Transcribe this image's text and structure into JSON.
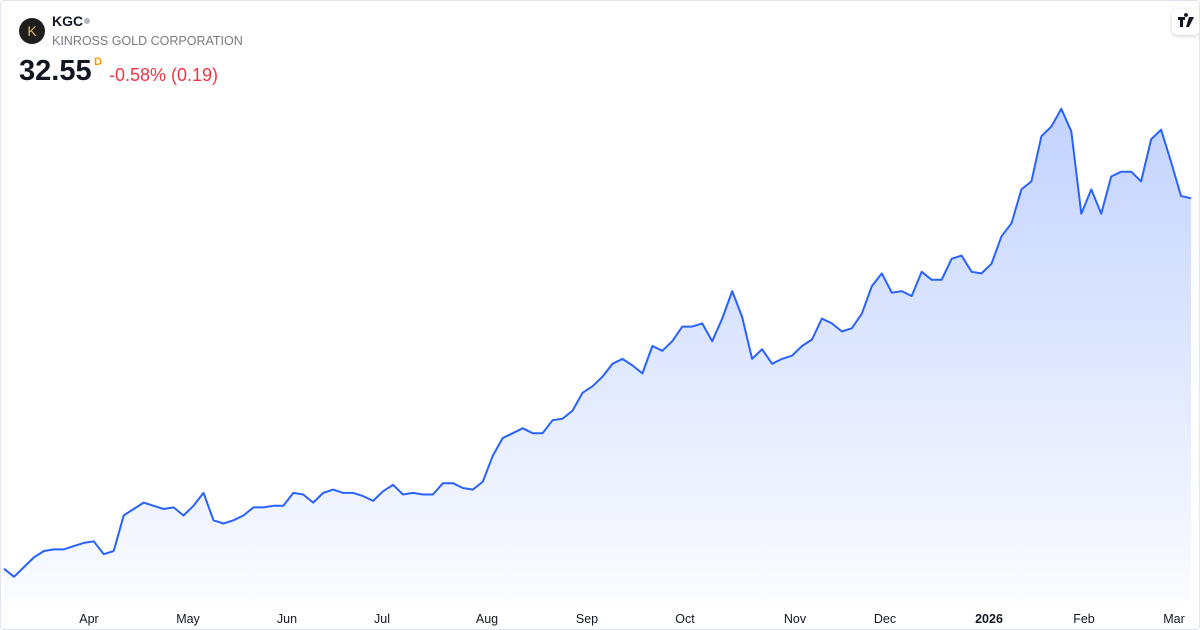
{
  "header": {
    "ticker": "KGC",
    "company": "KINROSS GOLD CORPORATION",
    "price": "32.55",
    "interval": "D",
    "change": "-0.58% (0.19)"
  },
  "chart_data": {
    "type": "area",
    "color": "#2962ff",
    "values": [
      9.6,
      9.1,
      9.7,
      10.3,
      10.7,
      10.8,
      10.8,
      11.0,
      11.2,
      11.3,
      10.5,
      10.7,
      12.9,
      13.3,
      13.7,
      13.5,
      13.3,
      13.4,
      12.9,
      13.5,
      14.3,
      12.6,
      12.4,
      12.6,
      12.9,
      13.4,
      13.4,
      13.5,
      13.5,
      14.3,
      14.2,
      13.7,
      14.3,
      14.5,
      14.3,
      14.3,
      14.1,
      13.8,
      14.4,
      14.8,
      14.2,
      14.3,
      14.2,
      14.2,
      14.9,
      14.9,
      14.6,
      14.5,
      15.0,
      16.6,
      17.7,
      18.0,
      18.3,
      18.0,
      18.0,
      18.8,
      18.9,
      19.4,
      20.5,
      20.9,
      21.5,
      22.3,
      22.6,
      22.2,
      21.7,
      23.4,
      23.1,
      23.7,
      24.6,
      24.6,
      24.8,
      23.7,
      25.1,
      26.8,
      25.2,
      22.6,
      23.2,
      22.3,
      22.6,
      22.8,
      23.4,
      23.8,
      25.1,
      24.8,
      24.3,
      24.5,
      25.4,
      27.1,
      27.9,
      26.7,
      26.8,
      26.5,
      28.0,
      27.5,
      27.5,
      28.8,
      29.0,
      28.0,
      27.9,
      28.5,
      30.2,
      31.0,
      33.1,
      33.6,
      36.4,
      37.0,
      38.1,
      36.7,
      31.6,
      33.1,
      31.6,
      33.9,
      34.2,
      34.2,
      33.6,
      36.2,
      36.8,
      34.8,
      32.7,
      32.55
    ],
    "ylim": [
      7.6,
      39.2
    ],
    "x_labels": [
      "Apr",
      "May",
      "Jun",
      "Jul",
      "Aug",
      "Sep",
      "Oct",
      "Nov",
      "Dec",
      "2026",
      "Feb",
      "Mar"
    ]
  }
}
